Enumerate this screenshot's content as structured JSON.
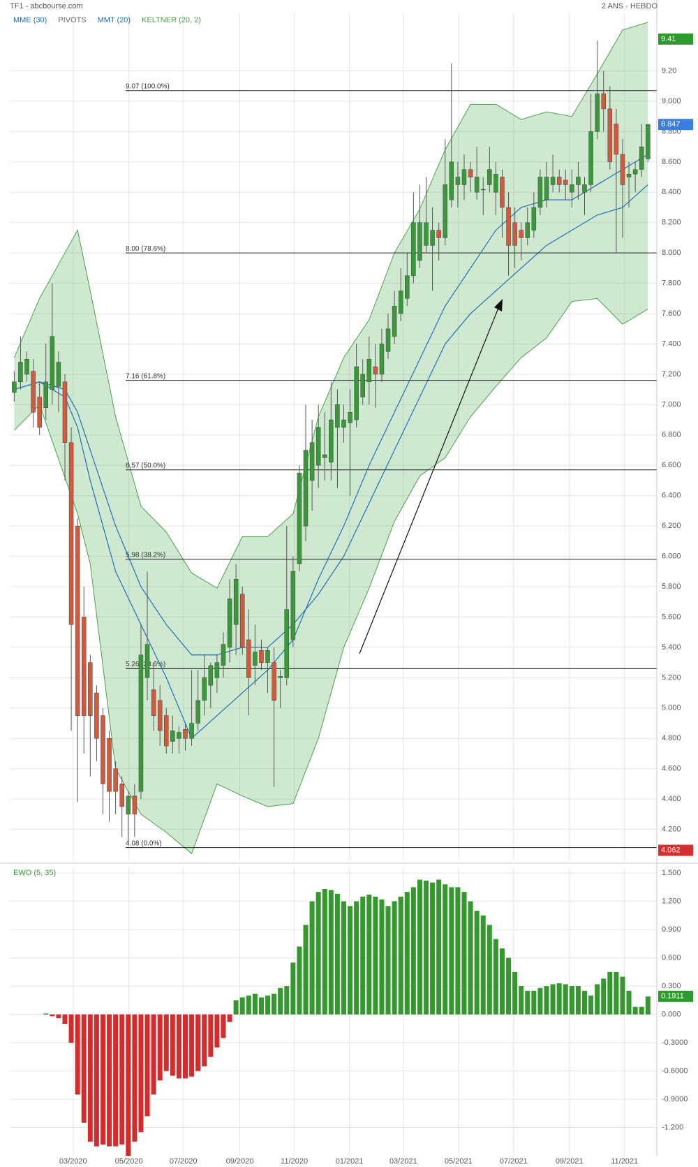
{
  "chart_data": [
    {
      "type": "candlestick",
      "title": "TF1 - abcbourse.com",
      "subtitle": "2 ANS - HEBDO",
      "xlim": [
        -0.7,
        101.4
      ],
      "ylim": [
        4.0,
        9.58
      ],
      "grid": true,
      "yticks": [
        {
          "value": 9.2,
          "label": "9.20"
        },
        {
          "value": 9.0,
          "label": "9.000"
        },
        {
          "value": 8.8,
          "label": "8.800"
        },
        {
          "value": 8.6,
          "label": "8.600"
        },
        {
          "value": 8.4,
          "label": "8.400"
        },
        {
          "value": 8.2,
          "label": "8.200"
        },
        {
          "value": 8.0,
          "label": "8.000"
        },
        {
          "value": 7.8,
          "label": "7.800"
        },
        {
          "value": 7.6,
          "label": "7.600"
        },
        {
          "value": 7.4,
          "label": "7.400"
        },
        {
          "value": 7.2,
          "label": "7.200"
        },
        {
          "value": 7.0,
          "label": "7.000"
        },
        {
          "value": 6.8,
          "label": "6.800"
        },
        {
          "value": 6.6,
          "label": "6.600"
        },
        {
          "value": 6.4,
          "label": "6.400"
        },
        {
          "value": 6.2,
          "label": "6.200"
        },
        {
          "value": 6.0,
          "label": "6.000"
        },
        {
          "value": 5.8,
          "label": "5.800"
        },
        {
          "value": 5.6,
          "label": "5.600"
        },
        {
          "value": 5.4,
          "label": "5.400"
        },
        {
          "value": 5.2,
          "label": "5.200"
        },
        {
          "value": 5.0,
          "label": "5.000"
        },
        {
          "value": 4.8,
          "label": "4.800"
        },
        {
          "value": 4.6,
          "label": "4.600"
        },
        {
          "value": 4.4,
          "label": "4.400"
        },
        {
          "value": 4.2,
          "label": "4.200"
        }
      ],
      "up_color": "#3a983a",
      "down_color": "#cf5a3e",
      "open": [
        7.08,
        7.15,
        7.2,
        7.22,
        7.05,
        6.98,
        7.1,
        7.12,
        7.15,
        6.75,
        6.2,
        5.6,
        5.3,
        5.1,
        4.95,
        4.8,
        4.6,
        4.5,
        4.3,
        4.42,
        4.45,
        5.2,
        5.12,
        5.05,
        4.95,
        4.78,
        4.8,
        4.86,
        4.8,
        4.9,
        5.05,
        5.15,
        5.2,
        5.28,
        5.4,
        5.55,
        5.75,
        5.45,
        5.28,
        5.38,
        5.3,
        5.3,
        5.2,
        5.2,
        5.45,
        5.95,
        6.2,
        6.5,
        6.6,
        6.65,
        6.62,
        6.85,
        6.85,
        6.88,
        6.9,
        7.05,
        7.15,
        7.25,
        7.2,
        7.35,
        7.45,
        7.6,
        7.7,
        7.85,
        7.95,
        8.05,
        8.05,
        8.15,
        8.1,
        8.35,
        8.45,
        8.45,
        8.55,
        8.4,
        8.42,
        8.45,
        8.4,
        8.5,
        8.3,
        8.2,
        8.15,
        8.1,
        8.15,
        8.3,
        8.35,
        8.45,
        8.5,
        8.48,
        8.4,
        8.45,
        8.4,
        8.45,
        8.8,
        9.05,
        8.95,
        8.85,
        8.65,
        8.5,
        8.52,
        8.55,
        8.62
      ],
      "high": [
        7.22,
        7.45,
        7.35,
        7.3,
        7.15,
        7.4,
        7.8,
        7.35,
        7.2,
        6.85,
        6.25,
        5.8,
        5.35,
        5.15,
        5.0,
        4.85,
        4.65,
        4.55,
        4.45,
        4.5,
        5.55,
        5.9,
        5.3,
        5.15,
        5.0,
        4.95,
        4.88,
        4.9,
        5.25,
        5.25,
        5.35,
        5.3,
        5.35,
        5.5,
        5.85,
        5.95,
        5.8,
        5.65,
        5.55,
        5.45,
        5.4,
        5.4,
        5.25,
        6.2,
        6.0,
        6.6,
        7.0,
        6.9,
        7.0,
        6.95,
        7.15,
        7.1,
        7.0,
        7.1,
        7.4,
        7.3,
        7.45,
        7.4,
        7.5,
        7.6,
        7.75,
        7.9,
        8.0,
        8.4,
        8.45,
        8.5,
        8.3,
        8.2,
        8.75,
        9.25,
        8.6,
        8.65,
        8.6,
        8.7,
        8.5,
        8.7,
        8.6,
        8.55,
        8.4,
        8.3,
        8.2,
        8.3,
        8.4,
        8.55,
        8.6,
        8.65,
        8.55,
        8.55,
        8.55,
        8.6,
        8.5,
        9.05,
        9.4,
        9.2,
        9.1,
        8.95,
        8.75,
        8.6,
        8.6,
        8.85,
        8.85
      ],
      "low": [
        7.02,
        7.1,
        7.15,
        6.85,
        6.8,
        6.9,
        7.0,
        6.95,
        6.5,
        4.85,
        4.38,
        4.7,
        4.55,
        4.65,
        4.3,
        4.25,
        4.3,
        4.15,
        4.1,
        4.15,
        4.4,
        5.05,
        4.85,
        4.75,
        4.7,
        4.7,
        4.7,
        4.72,
        4.75,
        4.85,
        4.95,
        5.0,
        5.1,
        5.2,
        5.3,
        5.35,
        5.35,
        4.95,
        5.15,
        5.25,
        5.1,
        4.48,
        5.0,
        5.15,
        5.4,
        5.9,
        6.1,
        6.3,
        6.45,
        6.5,
        6.5,
        6.45,
        6.75,
        6.4,
        6.85,
        7.0,
        7.0,
        6.98,
        7.15,
        7.3,
        7.4,
        7.55,
        7.65,
        7.8,
        7.9,
        8.0,
        7.75,
        7.95,
        8.05,
        8.3,
        8.3,
        8.35,
        8.4,
        8.35,
        8.25,
        8.4,
        8.25,
        8.1,
        7.85,
        7.9,
        7.95,
        8.05,
        8.1,
        8.25,
        8.3,
        8.4,
        8.4,
        8.35,
        8.3,
        8.35,
        8.25,
        8.4,
        8.75,
        8.8,
        8.55,
        8.0,
        8.1,
        8.3,
        8.4,
        8.5,
        8.6
      ],
      "close": [
        7.15,
        7.28,
        7.3,
        6.95,
        6.85,
        7.15,
        7.45,
        7.28,
        6.75,
        5.55,
        4.95,
        4.95,
        4.95,
        4.8,
        4.5,
        4.45,
        4.45,
        4.35,
        4.42,
        4.3,
        5.35,
        5.42,
        4.95,
        4.85,
        4.75,
        4.85,
        4.84,
        4.8,
        4.9,
        5.05,
        5.2,
        5.28,
        5.3,
        5.42,
        5.72,
        5.85,
        5.4,
        5.2,
        5.37,
        5.3,
        5.38,
        5.05,
        5.21,
        5.65,
        5.9,
        6.55,
        6.7,
        6.75,
        6.85,
        6.67,
        6.9,
        7.0,
        6.9,
        6.95,
        7.25,
        7.2,
        7.3,
        7.2,
        7.4,
        7.5,
        7.65,
        7.75,
        7.85,
        8.2,
        8.2,
        8.2,
        8.15,
        8.1,
        8.45,
        8.6,
        8.5,
        8.55,
        8.5,
        8.5,
        8.42,
        8.55,
        8.52,
        8.3,
        8.05,
        8.05,
        8.1,
        8.2,
        8.3,
        8.5,
        8.5,
        8.5,
        8.45,
        8.45,
        8.45,
        8.5,
        8.45,
        8.8,
        9.05,
        8.95,
        8.6,
        8.65,
        8.45,
        8.52,
        8.55,
        8.7,
        8.847
      ],
      "indicator_x": [
        0,
        4,
        8,
        10,
        12,
        16,
        20,
        24,
        28,
        32,
        36,
        40,
        44,
        48,
        52,
        56,
        60,
        64,
        68,
        72,
        76,
        80,
        84,
        88,
        92,
        96,
        100
      ],
      "indicators": [
        {
          "name": "MME (30)",
          "kind": "line",
          "color": "#1f6fb8",
          "values": [
            7.1,
            7.15,
            7.1,
            6.95,
            6.7,
            6.2,
            5.8,
            5.55,
            5.35,
            5.35,
            5.4,
            5.4,
            5.55,
            5.75,
            6.0,
            6.35,
            6.7,
            7.05,
            7.4,
            7.6,
            7.75,
            7.9,
            8.05,
            8.15,
            8.25,
            8.3,
            8.45
          ]
        },
        {
          "name": "PIVOTS",
          "kind": "levels",
          "color": "#666666",
          "levels": [
            {
              "value": 9.07,
              "label": "9.07 (100.0%)"
            },
            {
              "value": 8.0,
              "label": "8.00 (78.6%)"
            },
            {
              "value": 7.16,
              "label": "7.16 (61.8%)"
            },
            {
              "value": 6.57,
              "label": "6.57 (50.0%)"
            },
            {
              "value": 5.98,
              "label": "5.98 (38.2%)"
            },
            {
              "value": 5.26,
              "label": "5.26 (23.6%)"
            },
            {
              "value": 4.08,
              "label": "4.08 (0.0%)"
            }
          ]
        },
        {
          "name": "MMT (20)",
          "kind": "line",
          "color": "#1f6fb8",
          "values": [
            7.1,
            7.15,
            7.05,
            6.85,
            6.5,
            5.9,
            5.55,
            5.2,
            4.8,
            4.95,
            5.1,
            5.25,
            5.45,
            5.85,
            6.2,
            6.6,
            6.95,
            7.3,
            7.65,
            7.9,
            8.15,
            8.3,
            8.35,
            8.35,
            8.45,
            8.55,
            8.65
          ]
        },
        {
          "name": "KELTNER (20, 2)",
          "kind": "band",
          "color": "#4ca04c",
          "upper": [
            7.31,
            7.7,
            8.0,
            8.15,
            7.75,
            6.92,
            6.33,
            6.16,
            5.89,
            5.79,
            6.13,
            6.13,
            6.28,
            6.92,
            7.31,
            7.56,
            8.0,
            8.29,
            8.68,
            8.98,
            8.98,
            8.88,
            8.93,
            8.9,
            9.18,
            9.47,
            9.52
          ],
          "lower": [
            6.83,
            7.0,
            6.52,
            6.28,
            5.95,
            4.6,
            4.3,
            4.18,
            4.04,
            4.5,
            4.42,
            4.35,
            4.37,
            4.8,
            5.4,
            5.79,
            6.23,
            6.53,
            6.65,
            6.92,
            7.12,
            7.31,
            7.44,
            7.68,
            7.7,
            7.53,
            7.63
          ]
        }
      ],
      "badges": [
        {
          "value": 9.41,
          "color": "#2e9a2e"
        },
        {
          "value": 8.847,
          "color": "#3b7ddd"
        },
        {
          "value": 4.062,
          "color": "#d32f2f"
        }
      ]
    },
    {
      "type": "bar",
      "title": "EWO (5, 35)",
      "title_color": "#3a983a",
      "xlim": [
        -0.7,
        101.4
      ],
      "ylim": [
        -1.5,
        1.56
      ],
      "grid": true,
      "xticks": [
        {
          "value": 9.3,
          "label": "03/2020"
        },
        {
          "value": 18.1,
          "label": "05/2020"
        },
        {
          "value": 26.7,
          "label": "07/2020"
        },
        {
          "value": 35.6,
          "label": "09/2020"
        },
        {
          "value": 44.2,
          "label": "11/2020"
        },
        {
          "value": 52.9,
          "label": "01/2021"
        },
        {
          "value": 61.4,
          "label": "03/2021"
        },
        {
          "value": 70.1,
          "label": "05/2021"
        },
        {
          "value": 78.8,
          "label": "07/2021"
        },
        {
          "value": 87.6,
          "label": "09/2021"
        },
        {
          "value": 96.3,
          "label": "11/2021"
        }
      ],
      "yticks": [
        {
          "value": 1.5,
          "label": "1.500"
        },
        {
          "value": 1.2,
          "label": "1.200"
        },
        {
          "value": 0.9,
          "label": "0.900"
        },
        {
          "value": 0.6,
          "label": "0.600"
        },
        {
          "value": 0.3,
          "label": "0.300"
        },
        {
          "value": 0,
          "label": "0.000"
        },
        {
          "value": -0.3,
          "label": "-0.3000"
        },
        {
          "value": -0.6,
          "label": "-0.6000"
        },
        {
          "value": -0.9,
          "label": "-0.9000"
        },
        {
          "value": -1.2,
          "label": "-1.200"
        }
      ],
      "pos_color": "#34982f",
      "neg_color": "#d42c2c",
      "values": [
        null,
        null,
        null,
        null,
        null,
        0.01,
        -0.02,
        -0.04,
        -0.1,
        -0.3,
        -0.85,
        -1.15,
        -1.35,
        -1.4,
        -1.38,
        -1.4,
        -1.4,
        -1.38,
        -1.5,
        -1.35,
        -1.25,
        -1.08,
        -0.85,
        -0.7,
        -0.6,
        -0.65,
        -0.68,
        -0.68,
        -0.66,
        -0.6,
        -0.55,
        -0.45,
        -0.35,
        -0.25,
        -0.08,
        0.15,
        0.18,
        0.2,
        0.22,
        0.18,
        0.2,
        0.22,
        0.28,
        0.3,
        0.55,
        0.72,
        0.95,
        1.2,
        1.3,
        1.33,
        1.32,
        1.28,
        1.2,
        1.15,
        1.2,
        1.25,
        1.27,
        1.25,
        1.22,
        1.15,
        1.2,
        1.25,
        1.3,
        1.35,
        1.43,
        1.42,
        1.4,
        1.43,
        1.38,
        1.35,
        1.35,
        1.3,
        1.2,
        1.1,
        1.05,
        0.95,
        0.8,
        0.7,
        0.6,
        0.45,
        0.3,
        0.25,
        0.25,
        0.28,
        0.3,
        0.32,
        0.33,
        0.32,
        0.3,
        0.3,
        0.25,
        0.2,
        0.32,
        0.38,
        0.45,
        0.45,
        0.4,
        0.25,
        0.08,
        0.08,
        0.1911
      ],
      "badge": {
        "value": 0.1911,
        "color": "#2e9a2e"
      }
    }
  ]
}
